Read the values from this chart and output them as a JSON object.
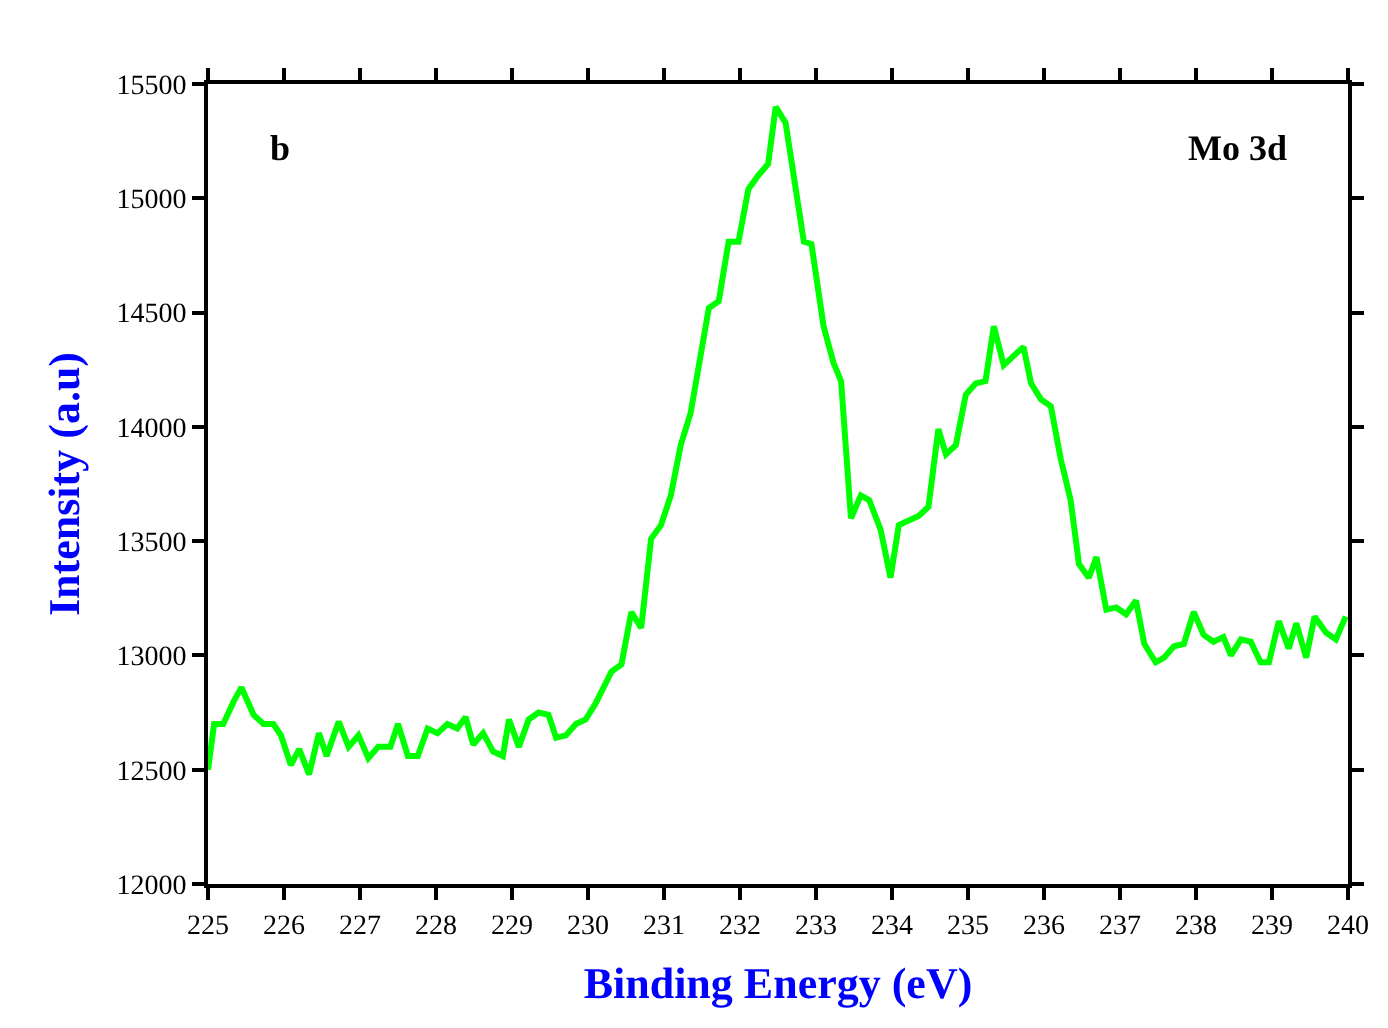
{
  "chart_data": {
    "type": "line",
    "xlabel": "Binding Energy (eV)",
    "ylabel": "Intensity (a.u)",
    "annotations": [
      "b",
      "Mo 3d"
    ],
    "xlim": [
      225,
      240
    ],
    "xticks": [
      225,
      226,
      227,
      228,
      229,
      230,
      231,
      232,
      233,
      234,
      235,
      236,
      237,
      238,
      239,
      240
    ],
    "ylim": [
      12000,
      15500
    ],
    "yticks": [
      12000,
      12500,
      13000,
      13500,
      14000,
      14500,
      15000,
      15500
    ],
    "grid": false,
    "marker": "none",
    "line_style": "solid",
    "series": [
      {
        "color": "#00ff00",
        "x": [
          225,
          225.08,
          225.2,
          225.34,
          225.44,
          225.6,
          225.73,
          225.86,
          225.96,
          226.09,
          226.2,
          226.33,
          226.46,
          226.56,
          226.72,
          226.85,
          226.98,
          227.11,
          227.24,
          227.4,
          227.5,
          227.63,
          227.76,
          227.89,
          228.02,
          228.15,
          228.28,
          228.39,
          228.49,
          228.62,
          228.75,
          228.88,
          228.96,
          229.09,
          229.22,
          229.35,
          229.48,
          229.58,
          229.71,
          229.84,
          229.97,
          230.1,
          230.31,
          230.44,
          230.57,
          230.7,
          230.83,
          230.96,
          231.09,
          231.22,
          231.35,
          231.59,
          231.72,
          231.85,
          231.98,
          232.11,
          232.24,
          232.37,
          232.47,
          232.6,
          232.84,
          232.94,
          233.1,
          233.23,
          233.33,
          233.46,
          233.59,
          233.7,
          233.85,
          233.98,
          234.09,
          234.35,
          234.48,
          234.61,
          234.71,
          234.84,
          234.97,
          235.1,
          235.23,
          235.34,
          235.47,
          235.73,
          235.83,
          235.96,
          236.09,
          236.22,
          236.35,
          236.46,
          236.59,
          236.69,
          236.82,
          236.95,
          237.08,
          237.21,
          237.32,
          237.47,
          237.58,
          237.71,
          237.84,
          237.97,
          238.1,
          238.23,
          238.36,
          238.46,
          238.59,
          238.72,
          238.85,
          238.96,
          239.09,
          239.22,
          239.32,
          239.45,
          239.56,
          239.71,
          239.84,
          239.97
        ],
        "values": [
          12500,
          12700,
          12700,
          12800,
          12860,
          12740,
          12700,
          12700,
          12650,
          12520,
          12590,
          12480,
          12660,
          12560,
          12710,
          12600,
          12650,
          12550,
          12600,
          12600,
          12700,
          12560,
          12560,
          12680,
          12660,
          12700,
          12680,
          12730,
          12610,
          12660,
          12580,
          12560,
          12720,
          12600,
          12720,
          12750,
          12740,
          12640,
          12650,
          12700,
          12720,
          12790,
          12930,
          12960,
          13190,
          13120,
          13510,
          13570,
          13700,
          13920,
          14060,
          14520,
          14550,
          14810,
          14810,
          15040,
          15100,
          15150,
          15400,
          15330,
          14810,
          14800,
          14440,
          14280,
          14200,
          13600,
          13700,
          13680,
          13550,
          13340,
          13570,
          13610,
          13650,
          13990,
          13880,
          13920,
          14140,
          14190,
          14200,
          14440,
          14270,
          14350,
          14190,
          14120,
          14090,
          13860,
          13680,
          13400,
          13340,
          13430,
          13200,
          13210,
          13180,
          13240,
          13050,
          12970,
          12990,
          13040,
          13050,
          13190,
          13090,
          13060,
          13080,
          13000,
          13070,
          13060,
          12970,
          12970,
          13150,
          13030,
          13140,
          12990,
          13170,
          13100,
          13070,
          13170
        ]
      }
    ]
  }
}
